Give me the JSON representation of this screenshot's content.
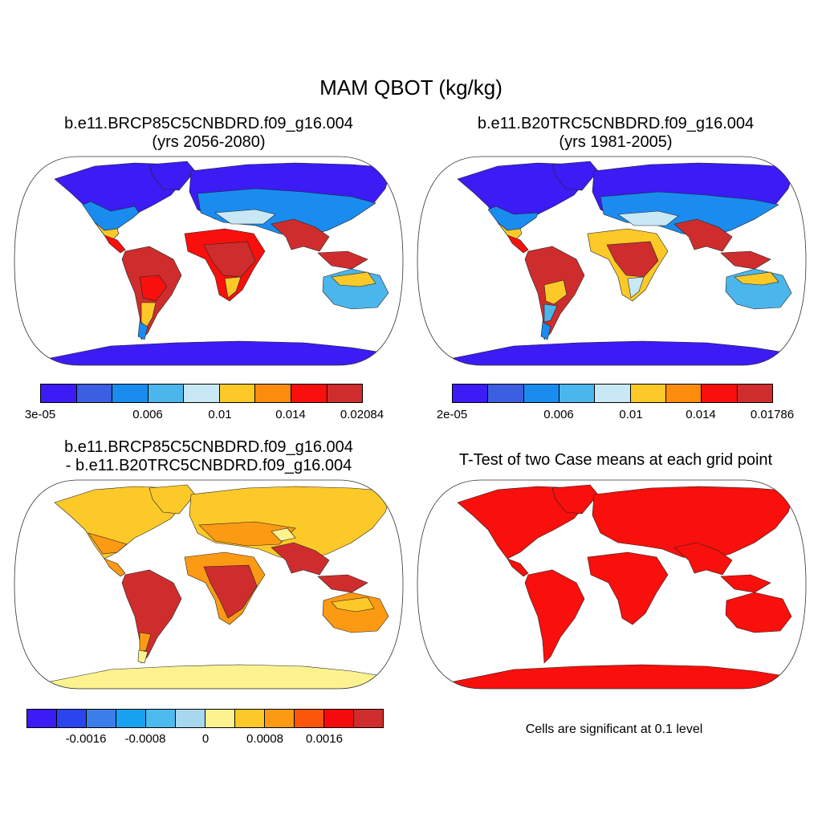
{
  "title": "MAM QBOT (kg/kg)",
  "panels": [
    {
      "line1": "b.e11.BRCP85C5CNBDRD.f09_g16.004",
      "line2": "(yrs 2056-2080)"
    },
    {
      "line1": "b.e11.B20TRC5CNBDRD.f09_g16.004",
      "line2": "(yrs 1981-2005)"
    },
    {
      "line1": "b.e11.BRCP85C5CNBDRD.f09_g16.004",
      "line2": "- b.e11.B20TRC5CNBDRD.f09_g16.004"
    },
    {
      "line1": "T-Test of two Case means at each grid point"
    }
  ],
  "colorbars": [
    {
      "colors": [
        "#3b1cf5",
        "#3c5ee0",
        "#1a8cf0",
        "#4bb6ec",
        "#c9e8f6",
        "#fcc928",
        "#fb8c0e",
        "#f90f0c",
        "#cf2d2d"
      ],
      "labels": [
        "3e-05",
        "0.006",
        "0.01",
        "0.014",
        "0.02084"
      ]
    },
    {
      "colors": [
        "#3b1cf5",
        "#3c5ee0",
        "#1a8cf0",
        "#4bb6ec",
        "#c9e8f6",
        "#fcc928",
        "#fb8c0e",
        "#f90f0c",
        "#cf2d2d"
      ],
      "labels": [
        "2e-05",
        "0.006",
        "0.01",
        "0.014",
        "0.01786"
      ]
    },
    {
      "colors": [
        "#3b1cf5",
        "#2a45ee",
        "#3b7eea",
        "#19a1f2",
        "#4cbaef",
        "#a7d8ee",
        "#fdf290",
        "#fcc928",
        "#fc9a14",
        "#fb560a",
        "#f40c0c",
        "#cf2d2d"
      ],
      "labels": [
        "-0.0016",
        "-0.0008",
        "0",
        "0.0008",
        "0.0016"
      ]
    }
  ],
  "note": "Cells are significant at 0.1 level"
}
